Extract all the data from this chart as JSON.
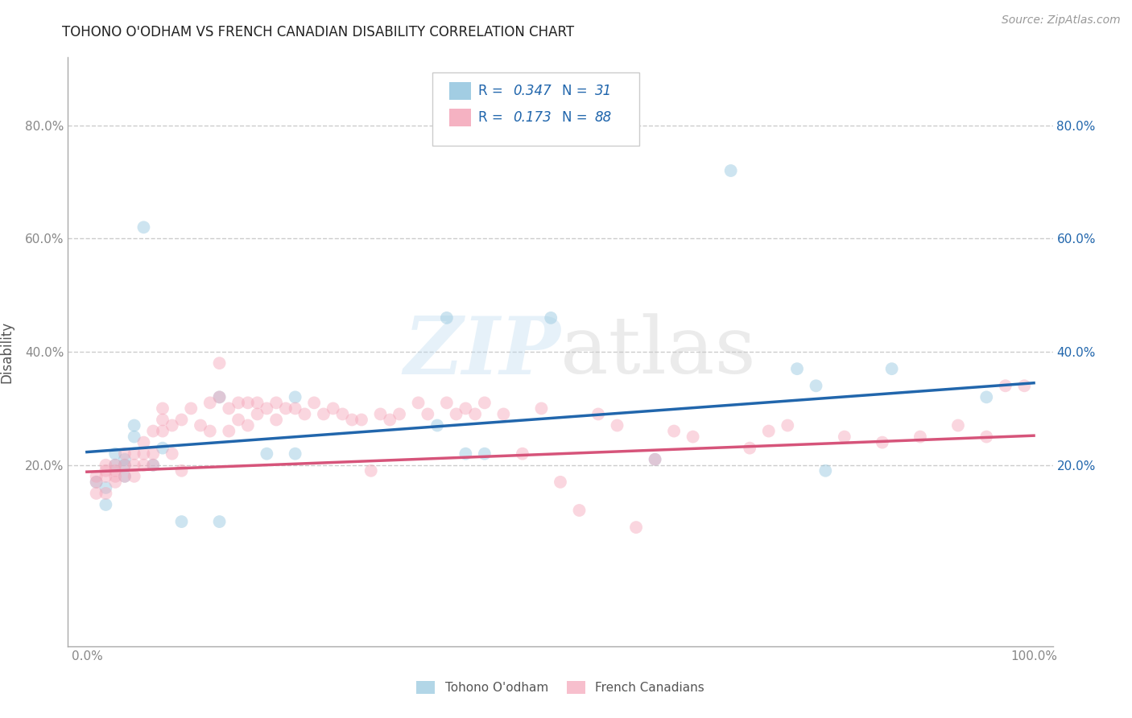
{
  "title": "TOHONO O'ODHAM VS FRENCH CANADIAN DISABILITY CORRELATION CHART",
  "source": "Source: ZipAtlas.com",
  "ylabel": "Disability",
  "watermark": "ZIPatlas",
  "blue_R": 0.347,
  "blue_N": 31,
  "pink_R": 0.173,
  "pink_N": 88,
  "blue_color": "#92c5de",
  "pink_color": "#f4a5b8",
  "blue_line_color": "#2166ac",
  "pink_line_color": "#d6547a",
  "legend_text_color": "#2166ac",
  "xlim": [
    -0.02,
    1.02
  ],
  "ylim": [
    -0.12,
    0.92
  ],
  "xtick_labels": [
    "0.0%",
    "",
    "",
    "",
    "",
    "100.0%"
  ],
  "xtick_vals": [
    0.0,
    0.2,
    0.4,
    0.6,
    0.8,
    1.0
  ],
  "ytick_vals": [
    0.2,
    0.4,
    0.6,
    0.8
  ],
  "ytick_labels": [
    "20.0%",
    "40.0%",
    "60.0%",
    "80.0%"
  ],
  "blue_scatter_x": [
    0.01,
    0.02,
    0.02,
    0.03,
    0.03,
    0.04,
    0.04,
    0.04,
    0.05,
    0.05,
    0.06,
    0.07,
    0.08,
    0.1,
    0.14,
    0.14,
    0.19,
    0.22,
    0.22,
    0.37,
    0.38,
    0.4,
    0.42,
    0.49,
    0.6,
    0.68,
    0.75,
    0.77,
    0.78,
    0.85,
    0.95
  ],
  "blue_scatter_y": [
    0.17,
    0.16,
    0.13,
    0.2,
    0.22,
    0.2,
    0.18,
    0.21,
    0.25,
    0.27,
    0.62,
    0.2,
    0.23,
    0.1,
    0.32,
    0.1,
    0.22,
    0.22,
    0.32,
    0.27,
    0.46,
    0.22,
    0.22,
    0.46,
    0.21,
    0.72,
    0.37,
    0.34,
    0.19,
    0.37,
    0.32
  ],
  "pink_scatter_x": [
    0.01,
    0.01,
    0.01,
    0.02,
    0.02,
    0.02,
    0.02,
    0.03,
    0.03,
    0.03,
    0.03,
    0.04,
    0.04,
    0.04,
    0.05,
    0.05,
    0.05,
    0.06,
    0.06,
    0.06,
    0.07,
    0.07,
    0.07,
    0.08,
    0.08,
    0.08,
    0.09,
    0.09,
    0.1,
    0.1,
    0.11,
    0.12,
    0.13,
    0.13,
    0.14,
    0.14,
    0.15,
    0.15,
    0.16,
    0.16,
    0.17,
    0.17,
    0.18,
    0.18,
    0.19,
    0.2,
    0.2,
    0.21,
    0.22,
    0.23,
    0.24,
    0.25,
    0.26,
    0.27,
    0.28,
    0.29,
    0.3,
    0.31,
    0.32,
    0.33,
    0.35,
    0.36,
    0.38,
    0.39,
    0.4,
    0.41,
    0.42,
    0.44,
    0.46,
    0.48,
    0.5,
    0.52,
    0.54,
    0.56,
    0.58,
    0.6,
    0.62,
    0.64,
    0.7,
    0.72,
    0.74,
    0.8,
    0.84,
    0.88,
    0.92,
    0.95,
    0.97,
    0.99
  ],
  "pink_scatter_y": [
    0.18,
    0.17,
    0.15,
    0.18,
    0.19,
    0.2,
    0.15,
    0.18,
    0.17,
    0.19,
    0.2,
    0.22,
    0.2,
    0.18,
    0.22,
    0.2,
    0.18,
    0.24,
    0.22,
    0.2,
    0.26,
    0.22,
    0.2,
    0.28,
    0.3,
    0.26,
    0.27,
    0.22,
    0.28,
    0.19,
    0.3,
    0.27,
    0.31,
    0.26,
    0.38,
    0.32,
    0.3,
    0.26,
    0.31,
    0.28,
    0.31,
    0.27,
    0.31,
    0.29,
    0.3,
    0.31,
    0.28,
    0.3,
    0.3,
    0.29,
    0.31,
    0.29,
    0.3,
    0.29,
    0.28,
    0.28,
    0.19,
    0.29,
    0.28,
    0.29,
    0.31,
    0.29,
    0.31,
    0.29,
    0.3,
    0.29,
    0.31,
    0.29,
    0.22,
    0.3,
    0.17,
    0.12,
    0.29,
    0.27,
    0.09,
    0.21,
    0.26,
    0.25,
    0.23,
    0.26,
    0.27,
    0.25,
    0.24,
    0.25,
    0.27,
    0.25,
    0.34,
    0.34
  ],
  "marker_size": 130,
  "marker_alpha": 0.45,
  "grid_color": "#cccccc",
  "grid_style": "--",
  "background_color": "#ffffff"
}
